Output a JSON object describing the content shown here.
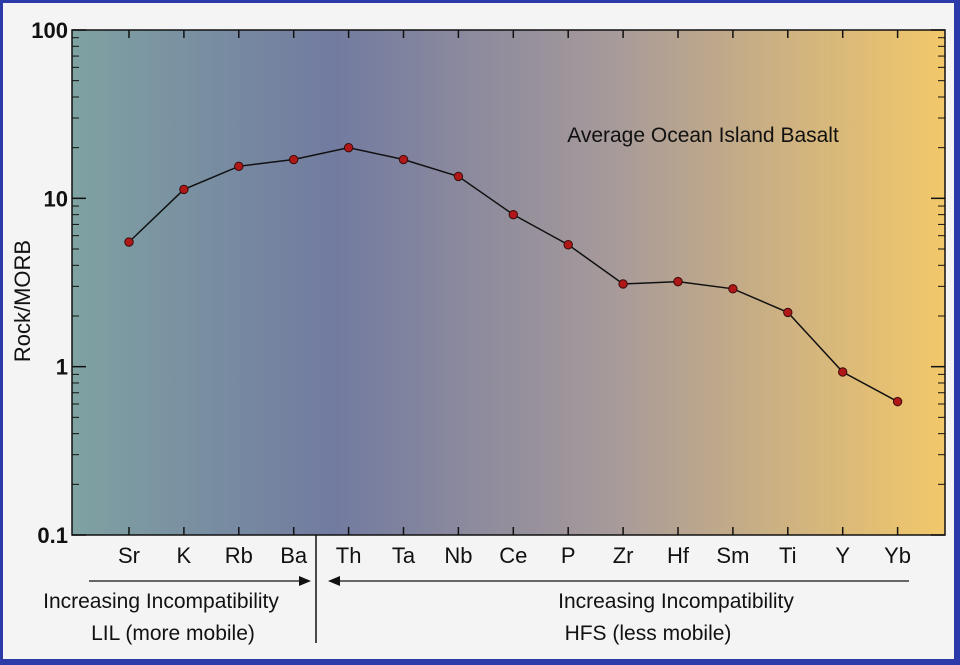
{
  "chart_data": {
    "type": "line",
    "title": "Average Ocean Island Basalt",
    "xlabel": "",
    "ylabel": "Rock/MORB",
    "yscale": "log",
    "ylim": [
      0.1,
      100
    ],
    "yticks": [
      "0.1",
      "1",
      "10",
      "100"
    ],
    "categories": [
      "Sr",
      "K",
      "Rb",
      "Ba",
      "Th",
      "Ta",
      "Nb",
      "Ce",
      "P",
      "Zr",
      "Hf",
      "Sm",
      "Ti",
      "Y",
      "Yb"
    ],
    "values": [
      5.5,
      11.3,
      15.5,
      17,
      20,
      17,
      13.5,
      8,
      5.3,
      3.1,
      3.2,
      2.9,
      2.1,
      0.93,
      0.62
    ],
    "grid": false,
    "marker_color": "#b01818",
    "line_color": "#111111",
    "background_gradient": [
      "#7fa2a2",
      "#727ba0",
      "#a79a9a",
      "#f2c86a"
    ]
  },
  "annotations": {
    "lil_direction": "Increasing Incompatibility",
    "lil_group": "LIL (more mobile)",
    "hfs_direction": "Increasing Incompatibility",
    "hfs_group": "HFS (less mobile)"
  }
}
